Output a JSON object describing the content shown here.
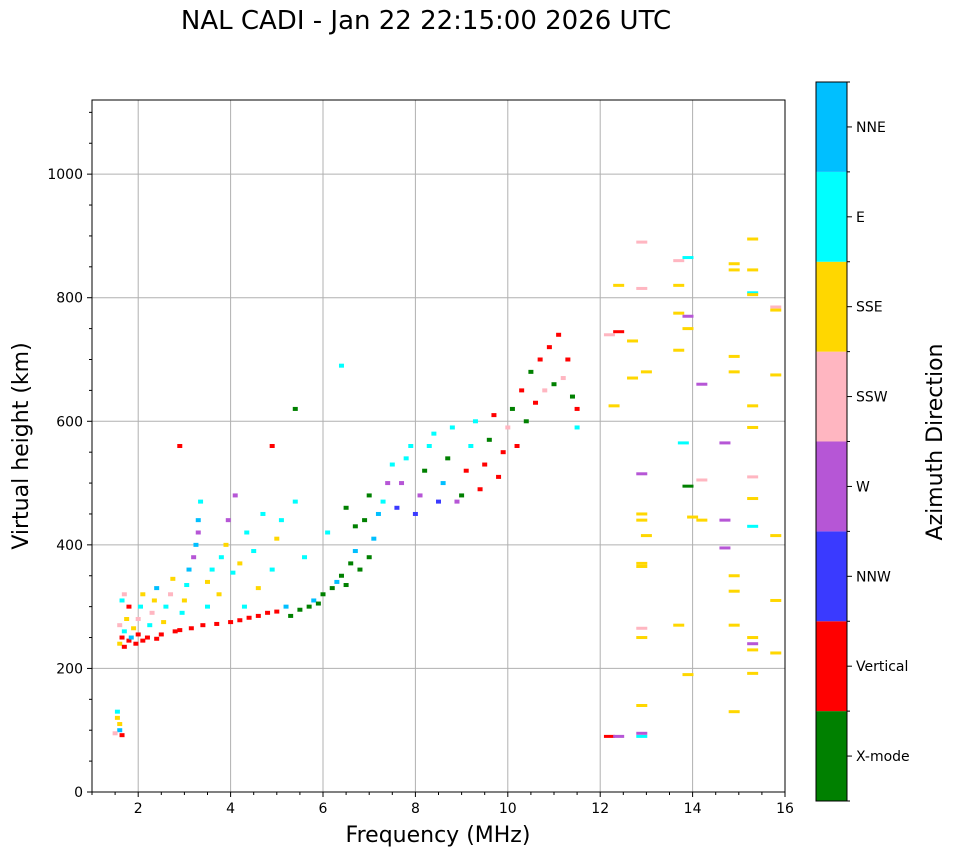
{
  "chart_data": {
    "type": "scatter",
    "title": "NAL CADI - Jan 22 22:15:00 2026 UTC",
    "xlabel": "Frequency (MHz)",
    "ylabel": "Virtual height (km)",
    "xlim": [
      1,
      16
    ],
    "ylim": [
      0,
      1120
    ],
    "xticks": [
      2,
      4,
      6,
      8,
      10,
      12,
      14,
      16
    ],
    "yticks": [
      0,
      200,
      400,
      600,
      800,
      1000
    ],
    "grid": true,
    "colorbar": {
      "label": "Azimuth Direction",
      "placement": "right",
      "categories": [
        {
          "name": "X-mode",
          "color": "#008000"
        },
        {
          "name": "Vertical",
          "color": "#ff0000"
        },
        {
          "name": "NNW",
          "color": "#3a3aff"
        },
        {
          "name": "W",
          "color": "#b656d6"
        },
        {
          "name": "SSW",
          "color": "#ffb6c1"
        },
        {
          "name": "SSE",
          "color": "#ffd700"
        },
        {
          "name": "E",
          "color": "#00ffff"
        },
        {
          "name": "NNE",
          "color": "#00bfff"
        }
      ]
    },
    "point_fields": [
      "frequency_mhz",
      "height_km",
      "direction_index"
    ],
    "points": [
      [
        1.55,
        130,
        6
      ],
      [
        1.55,
        120,
        5
      ],
      [
        1.6,
        110,
        5
      ],
      [
        1.6,
        100,
        7
      ],
      [
        1.5,
        95,
        4
      ],
      [
        1.65,
        92,
        1
      ],
      [
        1.6,
        240,
        5
      ],
      [
        1.65,
        250,
        1
      ],
      [
        1.7,
        235,
        1
      ],
      [
        1.7,
        260,
        6
      ],
      [
        1.6,
        270,
        4
      ],
      [
        1.75,
        280,
        5
      ],
      [
        1.8,
        300,
        1
      ],
      [
        1.65,
        310,
        6
      ],
      [
        1.7,
        320,
        4
      ],
      [
        1.8,
        245,
        1
      ],
      [
        1.85,
        250,
        7
      ],
      [
        1.9,
        265,
        5
      ],
      [
        1.95,
        240,
        1
      ],
      [
        2.0,
        255,
        1
      ],
      [
        2.0,
        280,
        4
      ],
      [
        2.05,
        300,
        6
      ],
      [
        2.1,
        320,
        5
      ],
      [
        2.1,
        245,
        1
      ],
      [
        2.2,
        250,
        1
      ],
      [
        2.25,
        270,
        6
      ],
      [
        2.3,
        290,
        4
      ],
      [
        2.35,
        310,
        5
      ],
      [
        2.4,
        330,
        7
      ],
      [
        2.4,
        248,
        1
      ],
      [
        2.5,
        255,
        1
      ],
      [
        2.55,
        275,
        5
      ],
      [
        2.6,
        300,
        6
      ],
      [
        2.7,
        320,
        4
      ],
      [
        2.75,
        345,
        5
      ],
      [
        2.8,
        260,
        1
      ],
      [
        2.9,
        262,
        1
      ],
      [
        2.95,
        290,
        6
      ],
      [
        3.0,
        310,
        5
      ],
      [
        3.05,
        335,
        6
      ],
      [
        3.1,
        360,
        7
      ],
      [
        3.15,
        265,
        1
      ],
      [
        3.2,
        380,
        3
      ],
      [
        3.25,
        400,
        7
      ],
      [
        3.3,
        420,
        3
      ],
      [
        3.3,
        440,
        7
      ],
      [
        3.35,
        470,
        6
      ],
      [
        3.4,
        270,
        1
      ],
      [
        3.5,
        300,
        6
      ],
      [
        3.5,
        340,
        5
      ],
      [
        3.6,
        360,
        6
      ],
      [
        3.7,
        272,
        1
      ],
      [
        3.75,
        320,
        5
      ],
      [
        3.8,
        380,
        6
      ],
      [
        3.9,
        400,
        5
      ],
      [
        3.95,
        440,
        3
      ],
      [
        4.0,
        275,
        1
      ],
      [
        4.05,
        355,
        6
      ],
      [
        4.1,
        480,
        3
      ],
      [
        4.2,
        278,
        1
      ],
      [
        4.2,
        370,
        5
      ],
      [
        4.3,
        300,
        6
      ],
      [
        4.35,
        420,
        6
      ],
      [
        4.4,
        282,
        1
      ],
      [
        4.5,
        390,
        6
      ],
      [
        4.6,
        285,
        1
      ],
      [
        4.6,
        330,
        5
      ],
      [
        4.7,
        450,
        6
      ],
      [
        4.8,
        290,
        1
      ],
      [
        4.9,
        360,
        6
      ],
      [
        5.0,
        292,
        1
      ],
      [
        5.0,
        410,
        5
      ],
      [
        5.1,
        440,
        6
      ],
      [
        5.2,
        300,
        7
      ],
      [
        5.3,
        285,
        0
      ],
      [
        5.4,
        470,
        6
      ],
      [
        5.5,
        295,
        0
      ],
      [
        5.6,
        380,
        6
      ],
      [
        5.7,
        300,
        0
      ],
      [
        5.8,
        310,
        7
      ],
      [
        5.9,
        305,
        0
      ],
      [
        6.0,
        320,
        0
      ],
      [
        6.1,
        420,
        6
      ],
      [
        6.2,
        330,
        0
      ],
      [
        6.3,
        340,
        7
      ],
      [
        6.4,
        350,
        0
      ],
      [
        6.5,
        335,
        0
      ],
      [
        6.5,
        460,
        0
      ],
      [
        6.6,
        370,
        0
      ],
      [
        6.7,
        390,
        7
      ],
      [
        6.7,
        430,
        0
      ],
      [
        6.8,
        360,
        0
      ],
      [
        6.9,
        440,
        0
      ],
      [
        7.0,
        380,
        0
      ],
      [
        7.0,
        480,
        0
      ],
      [
        7.1,
        410,
        7
      ],
      [
        7.2,
        450,
        7
      ],
      [
        7.3,
        470,
        6
      ],
      [
        7.4,
        500,
        3
      ],
      [
        7.5,
        530,
        6
      ],
      [
        7.6,
        460,
        2
      ],
      [
        7.7,
        500,
        3
      ],
      [
        7.8,
        540,
        6
      ],
      [
        7.9,
        560,
        6
      ],
      [
        8.0,
        450,
        2
      ],
      [
        8.1,
        480,
        3
      ],
      [
        8.2,
        520,
        0
      ],
      [
        8.3,
        560,
        6
      ],
      [
        8.4,
        580,
        6
      ],
      [
        8.5,
        470,
        2
      ],
      [
        8.6,
        500,
        7
      ],
      [
        8.7,
        540,
        0
      ],
      [
        8.8,
        590,
        6
      ],
      [
        8.9,
        470,
        3
      ],
      [
        9.0,
        480,
        0
      ],
      [
        9.1,
        520,
        1
      ],
      [
        9.2,
        560,
        6
      ],
      [
        9.3,
        600,
        6
      ],
      [
        9.4,
        490,
        1
      ],
      [
        9.5,
        530,
        1
      ],
      [
        9.6,
        570,
        0
      ],
      [
        9.7,
        610,
        1
      ],
      [
        9.8,
        510,
        1
      ],
      [
        9.9,
        550,
        1
      ],
      [
        10.0,
        590,
        4
      ],
      [
        10.1,
        620,
        0
      ],
      [
        10.2,
        560,
        1
      ],
      [
        10.3,
        650,
        1
      ],
      [
        10.4,
        600,
        0
      ],
      [
        10.5,
        680,
        0
      ],
      [
        10.6,
        630,
        1
      ],
      [
        10.7,
        700,
        1
      ],
      [
        10.8,
        650,
        4
      ],
      [
        10.9,
        720,
        1
      ],
      [
        11.0,
        660,
        0
      ],
      [
        11.1,
        740,
        1
      ],
      [
        11.2,
        670,
        4
      ],
      [
        11.3,
        700,
        1
      ],
      [
        11.4,
        640,
        0
      ],
      [
        11.5,
        620,
        1
      ],
      [
        11.5,
        590,
        6
      ],
      [
        6.4,
        690,
        6
      ],
      [
        5.4,
        620,
        0
      ],
      [
        4.9,
        560,
        1
      ],
      [
        2.9,
        560,
        1
      ],
      [
        12.2,
        90,
        1
      ],
      [
        12.4,
        90,
        3
      ],
      [
        12.9,
        90,
        6
      ],
      [
        12.9,
        95,
        3
      ],
      [
        12.2,
        740,
        4
      ],
      [
        12.4,
        745,
        1
      ],
      [
        12.7,
        730,
        5
      ],
      [
        12.7,
        670,
        5
      ],
      [
        12.3,
        625,
        5
      ],
      [
        12.4,
        820,
        5
      ],
      [
        12.9,
        890,
        4
      ],
      [
        12.9,
        815,
        4
      ],
      [
        13.0,
        680,
        5
      ],
      [
        12.9,
        515,
        3
      ],
      [
        12.9,
        450,
        5
      ],
      [
        12.9,
        440,
        5
      ],
      [
        13.0,
        415,
        5
      ],
      [
        12.9,
        370,
        5
      ],
      [
        12.9,
        365,
        5
      ],
      [
        12.9,
        265,
        4
      ],
      [
        12.9,
        250,
        5
      ],
      [
        12.9,
        140,
        5
      ],
      [
        13.7,
        860,
        4
      ],
      [
        13.9,
        865,
        6
      ],
      [
        13.7,
        820,
        5
      ],
      [
        13.7,
        775,
        5
      ],
      [
        13.9,
        770,
        3
      ],
      [
        13.7,
        715,
        5
      ],
      [
        13.9,
        750,
        5
      ],
      [
        13.8,
        565,
        6
      ],
      [
        13.9,
        495,
        0
      ],
      [
        14.0,
        445,
        5
      ],
      [
        13.9,
        190,
        5
      ],
      [
        13.7,
        270,
        5
      ],
      [
        14.2,
        660,
        3
      ],
      [
        14.2,
        505,
        4
      ],
      [
        14.2,
        440,
        5
      ],
      [
        14.7,
        565,
        3
      ],
      [
        14.7,
        440,
        3
      ],
      [
        14.7,
        395,
        3
      ],
      [
        14.9,
        855,
        5
      ],
      [
        14.9,
        845,
        5
      ],
      [
        14.9,
        705,
        5
      ],
      [
        14.9,
        680,
        5
      ],
      [
        14.9,
        350,
        5
      ],
      [
        14.9,
        325,
        5
      ],
      [
        14.9,
        270,
        5
      ],
      [
        14.9,
        130,
        5
      ],
      [
        15.3,
        895,
        5
      ],
      [
        15.3,
        845,
        5
      ],
      [
        15.3,
        808,
        6
      ],
      [
        15.3,
        805,
        5
      ],
      [
        15.3,
        625,
        5
      ],
      [
        15.3,
        590,
        5
      ],
      [
        15.3,
        510,
        4
      ],
      [
        15.3,
        475,
        5
      ],
      [
        15.3,
        430,
        6
      ],
      [
        15.3,
        250,
        5
      ],
      [
        15.3,
        240,
        3
      ],
      [
        15.3,
        230,
        5
      ],
      [
        15.3,
        192,
        5
      ],
      [
        15.8,
        785,
        4
      ],
      [
        15.8,
        780,
        5
      ],
      [
        15.8,
        675,
        5
      ],
      [
        15.8,
        415,
        5
      ],
      [
        15.8,
        310,
        5
      ],
      [
        15.8,
        225,
        5
      ]
    ]
  }
}
